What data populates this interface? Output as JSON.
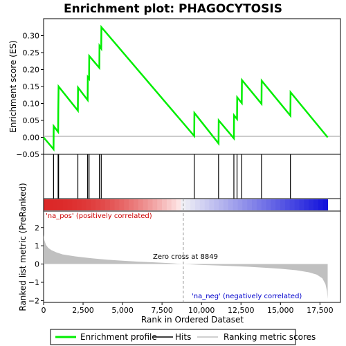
{
  "chart_data": {
    "type": "line",
    "title": "Enrichment plot: PHAGOCYTOSIS",
    "xlabel": "Rank in Ordered Dataset",
    "ylabel_top": "Enrichment score (ES)",
    "ylabel_bottom": "Ranked list metric (PreRanked)",
    "xlim": [
      0,
      18800
    ],
    "es_ylim": [
      -0.05,
      0.35
    ],
    "metric_ylim": [
      -2.1,
      2.9
    ],
    "x_ticks": [
      0,
      2500,
      5000,
      7500,
      10000,
      12500,
      15000,
      17500
    ],
    "x_tick_labels": [
      "0",
      "2,500",
      "5,000",
      "7,500",
      "10,000",
      "12,500",
      "15,000",
      "17,500"
    ],
    "es_ticks": [
      -0.05,
      0.0,
      0.05,
      0.1,
      0.15,
      0.2,
      0.25,
      0.3
    ],
    "es_tick_labels": [
      "−0.05",
      "0.00",
      "0.05",
      "0.10",
      "0.15",
      "0.20",
      "0.25",
      "0.30"
    ],
    "metric_ticks": [
      -2,
      -1,
      0,
      1,
      2
    ],
    "metric_tick_labels": [
      "−2",
      "−1",
      "0",
      "1",
      "2"
    ],
    "enrichment_profile": {
      "name": "Enrichment profile",
      "color": "#00ee00",
      "points": [
        [
          0,
          0.0
        ],
        [
          630,
          -0.035
        ],
        [
          640,
          0.033
        ],
        [
          920,
          0.016
        ],
        [
          930,
          0.08
        ],
        [
          950,
          0.15
        ],
        [
          2170,
          0.079
        ],
        [
          2180,
          0.147
        ],
        [
          2790,
          0.11
        ],
        [
          2800,
          0.178
        ],
        [
          2880,
          0.173
        ],
        [
          2890,
          0.24
        ],
        [
          3530,
          0.205
        ],
        [
          3540,
          0.27
        ],
        [
          3650,
          0.262
        ],
        [
          3660,
          0.325
        ],
        [
          9540,
          0.004
        ],
        [
          9550,
          0.072
        ],
        [
          11080,
          -0.018
        ],
        [
          11090,
          0.05
        ],
        [
          12050,
          -0.003
        ],
        [
          12060,
          0.065
        ],
        [
          12250,
          0.054
        ],
        [
          12260,
          0.118
        ],
        [
          12550,
          0.101
        ],
        [
          12560,
          0.169
        ],
        [
          13800,
          0.099
        ],
        [
          13810,
          0.167
        ],
        [
          15630,
          0.064
        ],
        [
          15640,
          0.133
        ],
        [
          17990,
          0.0
        ]
      ]
    },
    "hits": {
      "name": "Hits",
      "color": "#000000",
      "positions": [
        630,
        920,
        950,
        2170,
        2790,
        2880,
        3530,
        3650,
        9540,
        11080,
        12050,
        12250,
        12550,
        13800,
        15630
      ]
    },
    "ranking_metric": {
      "name": "Ranking metric scores",
      "color": "#c0c0c0",
      "points": [
        [
          0,
          1.6
        ],
        [
          50,
          1.3
        ],
        [
          150,
          1.05
        ],
        [
          300,
          0.88
        ],
        [
          500,
          0.76
        ],
        [
          800,
          0.64
        ],
        [
          1200,
          0.53
        ],
        [
          2000,
          0.42
        ],
        [
          3000,
          0.32
        ],
        [
          4000,
          0.24
        ],
        [
          5000,
          0.18
        ],
        [
          6000,
          0.13
        ],
        [
          7000,
          0.09
        ],
        [
          8000,
          0.05
        ],
        [
          8849,
          0.0
        ],
        [
          10000,
          -0.05
        ],
        [
          11000,
          -0.08
        ],
        [
          12000,
          -0.11
        ],
        [
          13000,
          -0.15
        ],
        [
          14000,
          -0.2
        ],
        [
          15000,
          -0.26
        ],
        [
          16000,
          -0.34
        ],
        [
          16800,
          -0.45
        ],
        [
          17300,
          -0.58
        ],
        [
          17650,
          -0.78
        ],
        [
          17850,
          -1.1
        ],
        [
          17950,
          -1.5
        ],
        [
          17990,
          -1.9
        ]
      ]
    },
    "zero_cross_label": "Zero cross at 8849",
    "zero_cross_rank": 8849,
    "pos_label": "'na_pos' (positively correlated)",
    "neg_label": "'na_neg' (negatively correlated)",
    "pos_color": "#cc0000",
    "neg_color": "#0000cc",
    "legend": [
      {
        "name": "Enrichment profile",
        "color": "#00ee00"
      },
      {
        "name": "Hits",
        "color": "#000000"
      },
      {
        "name": "Ranking metric scores",
        "color": "#c0c0c0"
      }
    ],
    "legend_position": "bottom",
    "grid": false
  }
}
